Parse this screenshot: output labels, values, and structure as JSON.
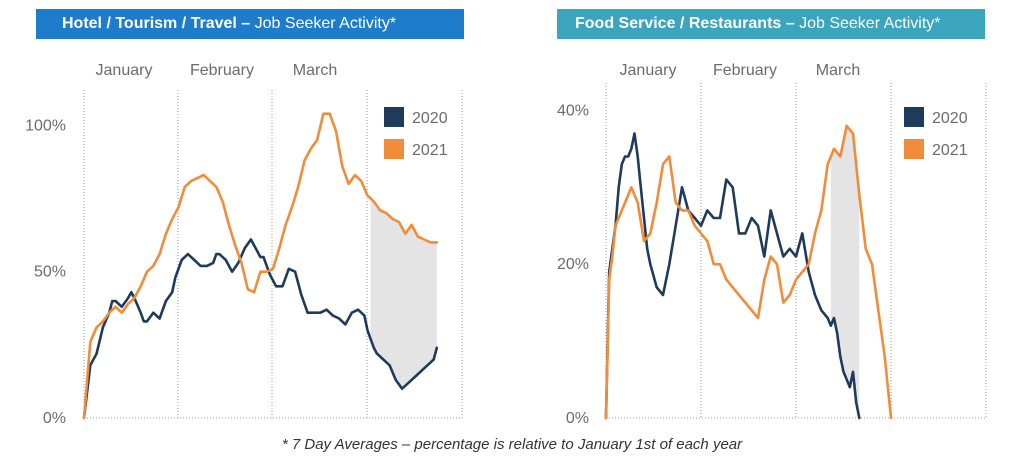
{
  "footnote": "* 7 Day Averages – percentage is relative to January 1st of each year",
  "charts": [
    {
      "title_bold": "Hotel / Tourism / Travel –",
      "title_rest": " Job Seeker Activity*",
      "header_color": "#1d7ccb",
      "months": [
        "January",
        "February",
        "March"
      ],
      "y_ticks": [
        {
          "value": 0,
          "label": "0%"
        },
        {
          "value": 50,
          "label": "50%"
        },
        {
          "value": 100,
          "label": "100%"
        }
      ],
      "legend": [
        "2020",
        "2021"
      ]
    },
    {
      "title_bold": "Food Service / Restaurants –",
      "title_rest": " Job Seeker Activity*",
      "header_color": "#3aa5bd",
      "months": [
        "January",
        "February",
        "March"
      ],
      "y_ticks": [
        {
          "value": 0,
          "label": "0%"
        },
        {
          "value": 20,
          "label": "20%"
        },
        {
          "value": 40,
          "label": "40%"
        }
      ],
      "legend": [
        "2020",
        "2021"
      ]
    }
  ],
  "chart_data": [
    {
      "type": "line",
      "title": "Hotel / Tourism / Travel – Job Seeker Activity*",
      "x_unit": "day of year",
      "xlim": [
        1,
        121
      ],
      "ylim": [
        0,
        108
      ],
      "x_tick_labels": [
        "January",
        "February",
        "March"
      ],
      "y_tick_labels": [
        "0%",
        "50%",
        "100%"
      ],
      "grid": "vertical dotted lines at month boundaries",
      "legend_position": "top-right",
      "shaded_gap": "grey fill between the 2021 and 2020 lines from about day 92 to day 113",
      "colors": {
        "2020": "#1f3b5c",
        "2021": "#f08c3a"
      },
      "series": [
        {
          "name": "2020",
          "x": [
            1,
            3,
            5,
            7,
            9,
            10,
            11,
            13,
            15,
            16,
            17,
            19,
            20,
            21,
            23,
            25,
            27,
            29,
            30,
            32,
            34,
            36,
            38,
            40,
            42,
            43,
            44,
            46,
            48,
            50,
            52,
            54,
            56,
            57,
            58,
            60,
            62,
            64,
            66,
            68,
            70,
            72,
            74,
            76,
            78,
            80,
            82,
            84,
            86,
            88,
            90,
            91,
            92,
            93,
            94,
            96,
            98,
            100,
            102,
            104,
            106,
            108,
            110,
            112,
            113
          ],
          "y": [
            0,
            18,
            22,
            31,
            36,
            40,
            40,
            38,
            41,
            43,
            41,
            36,
            33,
            33,
            36,
            34,
            40,
            43,
            48,
            54,
            56,
            54,
            52,
            52,
            53,
            56,
            56,
            54,
            50,
            53,
            58,
            61,
            57,
            55,
            55,
            49,
            45,
            45,
            51,
            50,
            42,
            36,
            36,
            36,
            37,
            35,
            34,
            32,
            36,
            37,
            35,
            30,
            27,
            24,
            22,
            20,
            18,
            13,
            10,
            12,
            14,
            16,
            18,
            20,
            24
          ]
        },
        {
          "name": "2021",
          "x": [
            1,
            3,
            5,
            7,
            9,
            11,
            13,
            15,
            17,
            19,
            21,
            23,
            25,
            27,
            29,
            31,
            33,
            35,
            37,
            39,
            41,
            43,
            45,
            47,
            49,
            51,
            53,
            55,
            57,
            59,
            61,
            63,
            65,
            67,
            69,
            71,
            73,
            75,
            77,
            79,
            81,
            83,
            85,
            87,
            89,
            91,
            93,
            95,
            97,
            99,
            101,
            103,
            105,
            107,
            109,
            111,
            113
          ],
          "y": [
            0,
            26,
            31,
            33,
            36,
            38,
            36,
            39,
            41,
            45,
            50,
            52,
            56,
            63,
            68,
            72,
            79,
            81,
            82,
            83,
            81,
            79,
            74,
            66,
            59,
            53,
            44,
            43,
            50,
            50,
            51,
            58,
            66,
            72,
            79,
            88,
            92,
            95,
            104,
            104,
            98,
            86,
            80,
            83,
            81,
            76,
            74,
            71,
            70,
            68,
            67,
            63,
            66,
            62,
            61,
            60,
            60
          ]
        }
      ]
    },
    {
      "type": "line",
      "title": "Food Service / Restaurants – Job Seeker Activity*",
      "x_unit": "day of year",
      "xlim": [
        1,
        121
      ],
      "ylim": [
        0,
        42
      ],
      "x_tick_labels": [
        "January",
        "February",
        "March"
      ],
      "y_tick_labels": [
        "0%",
        "20%",
        "40%"
      ],
      "grid": "vertical dotted lines at month boundaries",
      "legend_position": "top-right",
      "shaded_gap": "grey fill between the 2021 and 2020 lines from about day 72 to day 81",
      "colors": {
        "2020": "#1f3b5c",
        "2021": "#f08c3a"
      },
      "series": [
        {
          "name": "2020",
          "x": [
            1,
            2,
            3,
            4,
            5,
            6,
            7,
            8,
            9,
            10,
            11,
            12,
            13,
            14,
            15,
            17,
            19,
            21,
            23,
            25,
            27,
            29,
            31,
            33,
            35,
            37,
            39,
            41,
            43,
            45,
            47,
            49,
            51,
            53,
            55,
            57,
            59,
            61,
            63,
            65,
            67,
            69,
            71,
            72,
            73,
            74,
            75,
            76,
            77,
            78,
            79,
            80,
            81
          ],
          "y": [
            0,
            19,
            22,
            25,
            30,
            33,
            34,
            34,
            35,
            37,
            34,
            30,
            26,
            22,
            20,
            17,
            16,
            20,
            25,
            30,
            27,
            26,
            25,
            27,
            26,
            26,
            31,
            30,
            24,
            24,
            26,
            25,
            21,
            27,
            24,
            21,
            22,
            21,
            24,
            19,
            16,
            14,
            13,
            12,
            13,
            11,
            8,
            6,
            5,
            4,
            6,
            2,
            0
          ]
        },
        {
          "name": "2021",
          "x": [
            1,
            2,
            3,
            4,
            5,
            6,
            7,
            9,
            11,
            13,
            15,
            17,
            19,
            21,
            23,
            25,
            27,
            29,
            31,
            33,
            35,
            37,
            39,
            41,
            43,
            45,
            47,
            49,
            51,
            53,
            55,
            57,
            59,
            61,
            63,
            65,
            67,
            69,
            71,
            73,
            75,
            77,
            79,
            81,
            83,
            85,
            87,
            89,
            91
          ],
          "y": [
            0,
            18,
            21,
            25,
            26,
            27,
            28,
            30,
            28,
            23,
            24,
            28,
            33,
            34,
            28,
            27,
            27,
            25,
            24,
            23,
            20,
            20,
            18,
            17,
            16,
            15,
            14,
            13,
            18,
            21,
            20,
            15,
            16,
            18,
            19,
            20,
            24,
            27,
            33,
            35,
            34,
            38,
            37,
            29,
            22,
            20,
            14,
            8,
            0
          ]
        }
      ]
    }
  ]
}
